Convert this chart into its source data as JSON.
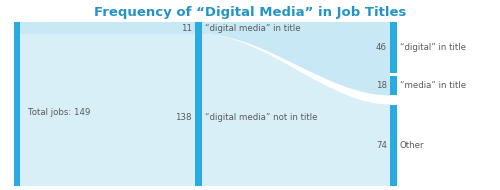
{
  "title": "Frequency of “Digital Media” in Job Titles",
  "title_color": "#2494C7",
  "title_fontsize": 9.5,
  "total": 149,
  "total_label": "Total jobs: 149",
  "bar_color": "#29ABE2",
  "flow_top_color": "#C8E8F5",
  "flow_bot_color": "#D8EFF8",
  "with_dm": 11,
  "without_dm": 138,
  "digital_only": 46,
  "media_only": 18,
  "other": 74,
  "label_with_dm": "“digital media” in title",
  "label_without_dm": "“digital media” not in title",
  "label_digital": "“digital” in title",
  "label_media": "“media” in title",
  "label_other": "Other",
  "text_color": "#5a5a5a",
  "bg_color": "#FFFFFF"
}
